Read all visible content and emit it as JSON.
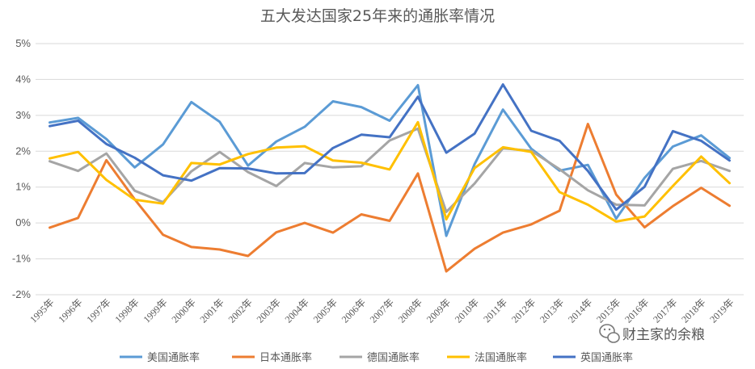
{
  "chart_data": {
    "type": "line",
    "title": "五大发达国家25年来的通胀率情况",
    "xlabel": "",
    "ylabel": "",
    "ylim": [
      -2,
      5
    ],
    "y_ticks": [
      "-2%",
      "-1%",
      "0%",
      "1%",
      "2%",
      "3%",
      "4%",
      "5%"
    ],
    "grid": "horizontal",
    "legend_position": "bottom",
    "categories": [
      "1995年",
      "1996年",
      "1997年",
      "1998年",
      "1999年",
      "2000年",
      "2001年",
      "2002年",
      "2003年",
      "2004年",
      "2005年",
      "2006年",
      "2007年",
      "2008年",
      "2009年",
      "2010年",
      "2011年",
      "2012年",
      "2013年",
      "2014年",
      "2015年",
      "2016年",
      "2017年",
      "2018年",
      "2019年"
    ],
    "series": [
      {
        "name": "美国通胀率",
        "color": "#5B9BD5",
        "values": [
          2.8,
          2.93,
          2.34,
          1.55,
          2.19,
          3.37,
          2.82,
          1.6,
          2.27,
          2.68,
          3.39,
          3.23,
          2.85,
          3.84,
          -0.36,
          1.64,
          3.16,
          2.07,
          1.46,
          1.62,
          0.12,
          1.26,
          2.13,
          2.44,
          1.81
        ]
      },
      {
        "name": "日本通胀率",
        "color": "#ED7D31",
        "values": [
          -0.13,
          0.14,
          1.75,
          0.66,
          -0.33,
          -0.67,
          -0.74,
          -0.92,
          -0.26,
          0.0,
          -0.27,
          0.24,
          0.06,
          1.38,
          -1.35,
          -0.72,
          -0.27,
          -0.04,
          0.34,
          2.76,
          0.79,
          -0.12,
          0.47,
          0.98,
          0.48
        ]
      },
      {
        "name": "德国通胀率",
        "color": "#A5A5A5",
        "values": [
          1.72,
          1.45,
          1.94,
          0.9,
          0.58,
          1.44,
          1.98,
          1.42,
          1.03,
          1.67,
          1.55,
          1.58,
          2.3,
          2.63,
          0.31,
          1.1,
          2.08,
          2.01,
          1.5,
          0.91,
          0.51,
          0.49,
          1.51,
          1.73,
          1.45
        ]
      },
      {
        "name": "法国通胀率",
        "color": "#FFC000",
        "values": [
          1.8,
          1.98,
          1.2,
          0.65,
          0.54,
          1.67,
          1.63,
          1.92,
          2.1,
          2.14,
          1.74,
          1.68,
          1.49,
          2.81,
          0.1,
          1.53,
          2.11,
          1.98,
          0.86,
          0.51,
          0.04,
          0.18,
          1.03,
          1.85,
          1.11
        ]
      },
      {
        "name": "英国通胀率",
        "color": "#4472C4",
        "values": [
          2.7,
          2.85,
          2.2,
          1.82,
          1.33,
          1.18,
          1.53,
          1.52,
          1.38,
          1.39,
          2.09,
          2.46,
          2.39,
          3.52,
          1.96,
          2.49,
          3.86,
          2.57,
          2.29,
          1.45,
          0.37,
          1.01,
          2.56,
          2.29,
          1.74
        ]
      }
    ]
  },
  "watermark": {
    "text": "财主家的余粮",
    "icon": "wechat-icon"
  }
}
